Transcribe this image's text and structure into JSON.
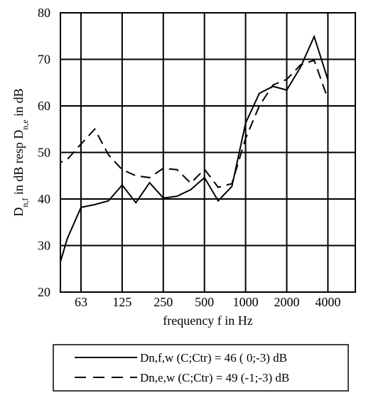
{
  "chart_data": {
    "type": "line",
    "xlabel": "frequency f in Hz",
    "ylabel": {
      "parts": [
        {
          "text": "D",
          "sub": false
        },
        {
          "text": "n,f",
          "sub": true
        },
        {
          "text": " in dB resp D",
          "sub": false
        },
        {
          "text": "n,e",
          "sub": true
        },
        {
          "text": "  in dB",
          "sub": false
        }
      ]
    },
    "ylim": [
      20,
      80
    ],
    "y_ticks": [
      20,
      30,
      40,
      50,
      60,
      70,
      80
    ],
    "x_tick_labels": [
      {
        "label": "63",
        "band": 2
      },
      {
        "label": "125",
        "band": 5
      },
      {
        "label": "250",
        "band": 8
      },
      {
        "label": "500",
        "band": 11
      },
      {
        "label": "1000",
        "band": 14
      },
      {
        "label": "2000",
        "band": 17
      },
      {
        "label": "4000",
        "band": 20
      }
    ],
    "bands": [
      "40",
      "50",
      "63",
      "80",
      "100",
      "125",
      "160",
      "200",
      "250",
      "315",
      "400",
      "500",
      "630",
      "800",
      "1000",
      "1250",
      "1600",
      "2000",
      "2500",
      "3150",
      "4000",
      "5000"
    ],
    "grid": true,
    "legend_position": "bottom",
    "series": [
      {
        "name": "Dn,f,w (C;Ctr) = 46 ( 0;-3) dB",
        "style": "solid",
        "values": [
          21.5,
          31.5,
          38.2,
          38.8,
          39.6,
          43.0,
          39.2,
          43.5,
          40.2,
          40.6,
          42.0,
          44.6,
          39.6,
          42.7,
          56.3,
          62.7,
          64.2,
          63.4,
          68.3,
          74.9,
          65.6,
          null
        ]
      },
      {
        "name": "Dn,e,w (C;Ctr) = 49 (-1;-3) dB",
        "style": "dashed",
        "values": [
          47.2,
          48.5,
          51.8,
          55.0,
          49.5,
          46.3,
          45.0,
          44.6,
          46.6,
          46.3,
          43.4,
          46.4,
          42.5,
          43.3,
          53.0,
          60.0,
          64.5,
          65.7,
          68.8,
          69.8,
          61.5,
          null
        ]
      }
    ]
  }
}
